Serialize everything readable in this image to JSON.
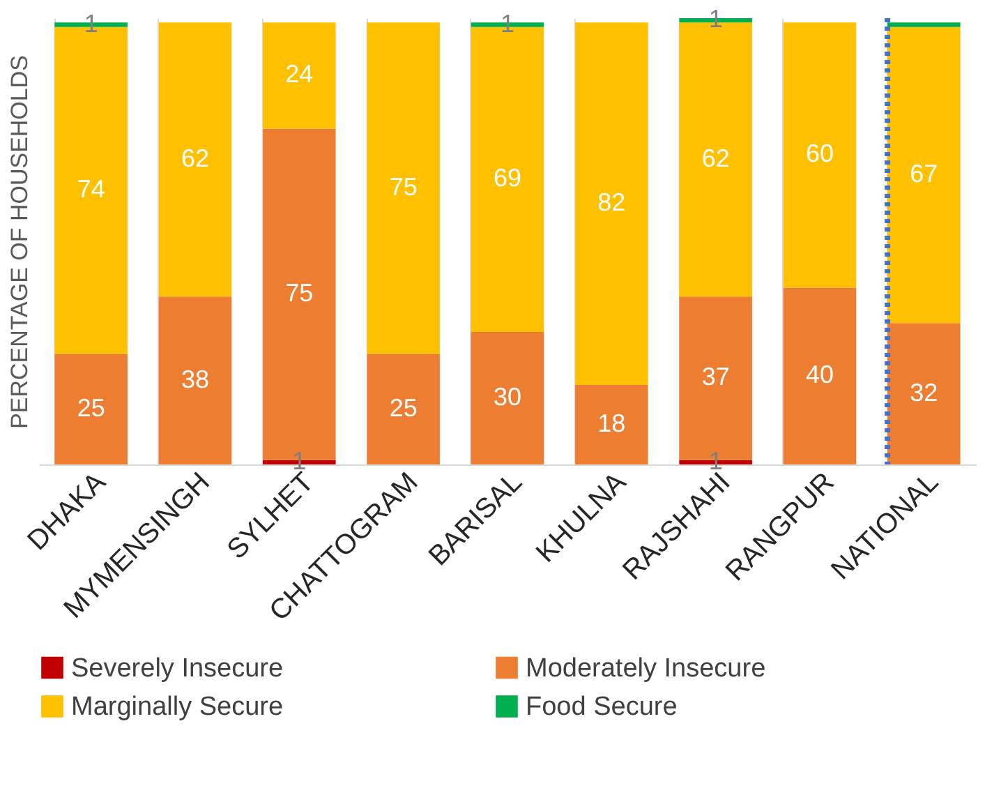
{
  "chart_data": {
    "type": "bar",
    "stacked": true,
    "ylabel": "PERCENTAGE OF HOUSEHOLDS",
    "categories": [
      "DHAKA",
      "MYMENSINGH",
      "SYLHET",
      "CHATTOGRAM",
      "BARISAL",
      "KHULNA",
      "RAJSHAHI",
      "RANGPUR",
      "NATIONAL"
    ],
    "series": [
      {
        "name": "Severely Insecure",
        "color": "#c00000",
        "values": [
          0,
          0,
          1,
          0,
          0,
          0,
          1,
          0,
          0
        ],
        "value_labels": [
          null,
          null,
          "1",
          null,
          null,
          null,
          "1",
          null,
          null
        ]
      },
      {
        "name": "Moderately Insecure",
        "color": "#ed7d31",
        "values": [
          25,
          38,
          75,
          25,
          30,
          18,
          37,
          40,
          32
        ],
        "value_labels": [
          "25",
          "38",
          "75",
          "25",
          "30",
          "18",
          "37",
          "40",
          "32"
        ]
      },
      {
        "name": "Marginally Secure",
        "color": "#ffc000",
        "values": [
          74,
          62,
          24,
          75,
          69,
          82,
          62,
          60,
          67
        ],
        "value_labels": [
          "74",
          "62",
          "24",
          "75",
          "69",
          "82",
          "62",
          "60",
          "67"
        ]
      },
      {
        "name": "Food Secure",
        "color": "#00b050",
        "values": [
          1,
          0,
          0,
          0,
          1,
          0,
          1,
          0,
          1
        ],
        "value_labels": [
          "1",
          null,
          null,
          null,
          "1",
          null,
          "1",
          null,
          null
        ]
      }
    ],
    "ylim": [
      0,
      101
    ],
    "tick_labels": "x",
    "grid": "x",
    "legend": "bottom",
    "ref_lines": [
      {
        "axis": "x",
        "value": "NATIONAL",
        "color": "#4472c4",
        "line_style": "dotted"
      }
    ]
  }
}
